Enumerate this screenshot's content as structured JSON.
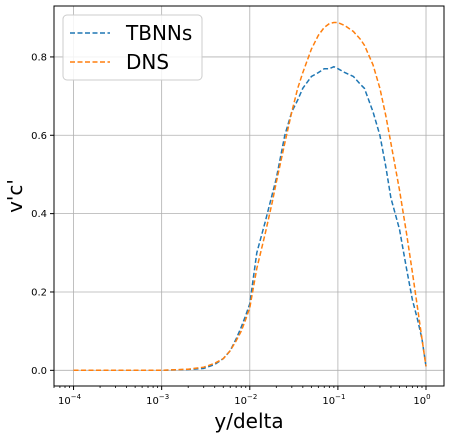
{
  "chart_data": {
    "type": "line",
    "xscale": "log",
    "xlabel": "y/delta",
    "ylabel": "v'c'",
    "xlim": [
      6e-05,
      1.6
    ],
    "ylim": [
      -0.04,
      0.93
    ],
    "grid": true,
    "legend_position": "top-left",
    "x_ticks": [
      0.0001,
      0.001,
      0.01,
      0.1,
      1
    ],
    "x_tick_labels": [
      {
        "base": "10",
        "exp": "−4"
      },
      {
        "base": "10",
        "exp": "−3"
      },
      {
        "base": "10",
        "exp": "−2"
      },
      {
        "base": "10",
        "exp": "−1"
      },
      {
        "base": "10",
        "exp": "0"
      }
    ],
    "y_ticks": [
      0.0,
      0.2,
      0.4,
      0.6,
      0.8
    ],
    "y_tick_labels": [
      "0.0",
      "0.2",
      "0.4",
      "0.6",
      "0.8"
    ],
    "series": [
      {
        "name": "TBNNs",
        "color": "#1f77b4",
        "linestyle": "dashed",
        "x": [
          0.0001,
          0.0003,
          0.001,
          0.002,
          0.003,
          0.004,
          0.005,
          0.006,
          0.007,
          0.008,
          0.009,
          0.01,
          0.012,
          0.015,
          0.018,
          0.02,
          0.025,
          0.03,
          0.035,
          0.04,
          0.05,
          0.06,
          0.07,
          0.08,
          0.09,
          0.1,
          0.12,
          0.15,
          0.18,
          0.2,
          0.25,
          0.3,
          0.35,
          0.4,
          0.5,
          0.6,
          0.7,
          0.8,
          0.9,
          1.0
        ],
        "y": [
          0.0,
          0.0,
          0.0,
          0.002,
          0.005,
          0.015,
          0.03,
          0.05,
          0.08,
          0.11,
          0.14,
          0.17,
          0.3,
          0.38,
          0.45,
          0.49,
          0.6,
          0.66,
          0.69,
          0.72,
          0.75,
          0.76,
          0.77,
          0.77,
          0.775,
          0.77,
          0.76,
          0.75,
          0.73,
          0.72,
          0.66,
          0.6,
          0.52,
          0.44,
          0.36,
          0.26,
          0.18,
          0.13,
          0.08,
          0.01
        ]
      },
      {
        "name": "DNS",
        "color": "#ff7f0e",
        "linestyle": "dashed",
        "x": [
          0.0001,
          0.0003,
          0.001,
          0.002,
          0.003,
          0.004,
          0.005,
          0.006,
          0.007,
          0.008,
          0.009,
          0.01,
          0.012,
          0.015,
          0.018,
          0.02,
          0.025,
          0.03,
          0.035,
          0.04,
          0.05,
          0.06,
          0.07,
          0.08,
          0.09,
          0.1,
          0.12,
          0.15,
          0.18,
          0.2,
          0.25,
          0.3,
          0.35,
          0.4,
          0.5,
          0.6,
          0.7,
          0.8,
          0.9,
          1.0
        ],
        "y": [
          0.0,
          0.0,
          0.0,
          0.003,
          0.008,
          0.018,
          0.03,
          0.05,
          0.075,
          0.1,
          0.13,
          0.16,
          0.26,
          0.35,
          0.43,
          0.48,
          0.58,
          0.66,
          0.72,
          0.76,
          0.82,
          0.855,
          0.875,
          0.885,
          0.888,
          0.888,
          0.88,
          0.865,
          0.845,
          0.83,
          0.78,
          0.72,
          0.65,
          0.58,
          0.46,
          0.35,
          0.25,
          0.16,
          0.08,
          0.01
        ]
      }
    ]
  }
}
